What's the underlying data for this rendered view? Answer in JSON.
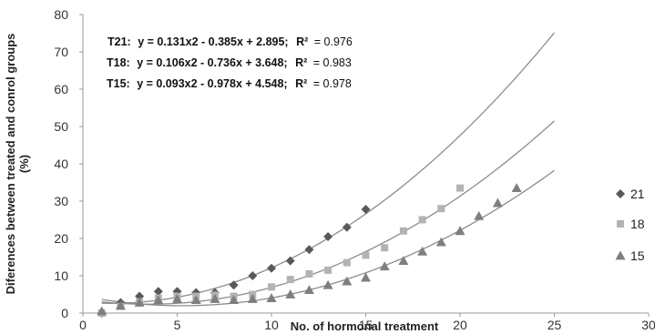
{
  "chart_data": {
    "type": "scatter",
    "title": "",
    "xlabel": "No. of hormonal treatment",
    "ylabel_line1": "Diferences between treated and conrol groups",
    "ylabel_line2": "(%)",
    "xlim": [
      0,
      30
    ],
    "ylim": [
      0,
      80
    ],
    "xticks": [
      0,
      5,
      10,
      15,
      20,
      25,
      30
    ],
    "yticks": [
      0,
      10,
      20,
      30,
      40,
      50,
      60,
      70,
      80
    ],
    "grid": false,
    "legend_position": "right",
    "equations": [
      {
        "series": "T21:",
        "formula": "y = 0.131x2 - 0.385x + 2.895;",
        "r2_label": "R²",
        "r2_value": "= 0.976"
      },
      {
        "series": "T18:",
        "formula": "y = 0.106x2 - 0.736x + 3.648;",
        "r2_label": "R²",
        "r2_value": "= 0.983"
      },
      {
        "series": "T15:",
        "formula": "y = 0.093x2 - 0.978x + 4.548;",
        "r2_label": "R²",
        "r2_value": "= 0.978"
      }
    ],
    "series": [
      {
        "name": "21",
        "marker": "diamond",
        "color": "#595959",
        "x": [
          1,
          2,
          3,
          4,
          5,
          6,
          7,
          8,
          9,
          10,
          11,
          12,
          13,
          14,
          15
        ],
        "y": [
          0,
          2.8,
          4.5,
          5.8,
          5.8,
          5.5,
          5.5,
          7.5,
          10,
          12,
          14,
          17,
          20.5,
          23,
          27.8
        ],
        "fit": {
          "a": 0.131,
          "b": -0.385,
          "c": 2.895,
          "x_range": [
            1,
            25
          ]
        }
      },
      {
        "name": "18",
        "marker": "square",
        "color": "#b3b3b3",
        "x": [
          1,
          2,
          3,
          4,
          5,
          6,
          7,
          8,
          9,
          10,
          11,
          12,
          13,
          14,
          15,
          16,
          17,
          18,
          19,
          20
        ],
        "y": [
          0,
          1.8,
          3,
          4,
          4.5,
          4.5,
          4.8,
          4.5,
          5,
          7,
          9,
          10.5,
          11.5,
          13.5,
          15.5,
          17.5,
          22,
          25,
          28,
          33.5
        ],
        "fit": {
          "a": 0.106,
          "b": -0.736,
          "c": 3.648,
          "x_range": [
            1,
            25
          ]
        }
      },
      {
        "name": "15",
        "marker": "triangle",
        "color": "#7f7f7f",
        "x": [
          1,
          2,
          3,
          4,
          5,
          6,
          7,
          8,
          9,
          10,
          11,
          12,
          13,
          14,
          15,
          16,
          17,
          18,
          19,
          20,
          21,
          22,
          23
        ],
        "y": [
          0.5,
          2,
          2.8,
          3.5,
          3.8,
          3.5,
          3.8,
          3.5,
          3.8,
          4,
          5,
          6.2,
          7.5,
          8.5,
          9.5,
          12.5,
          14,
          16.5,
          19,
          22,
          26,
          29.5,
          33.5
        ],
        "fit": {
          "a": 0.093,
          "b": -0.978,
          "c": 4.548,
          "x_range": [
            1,
            25
          ]
        }
      }
    ]
  }
}
